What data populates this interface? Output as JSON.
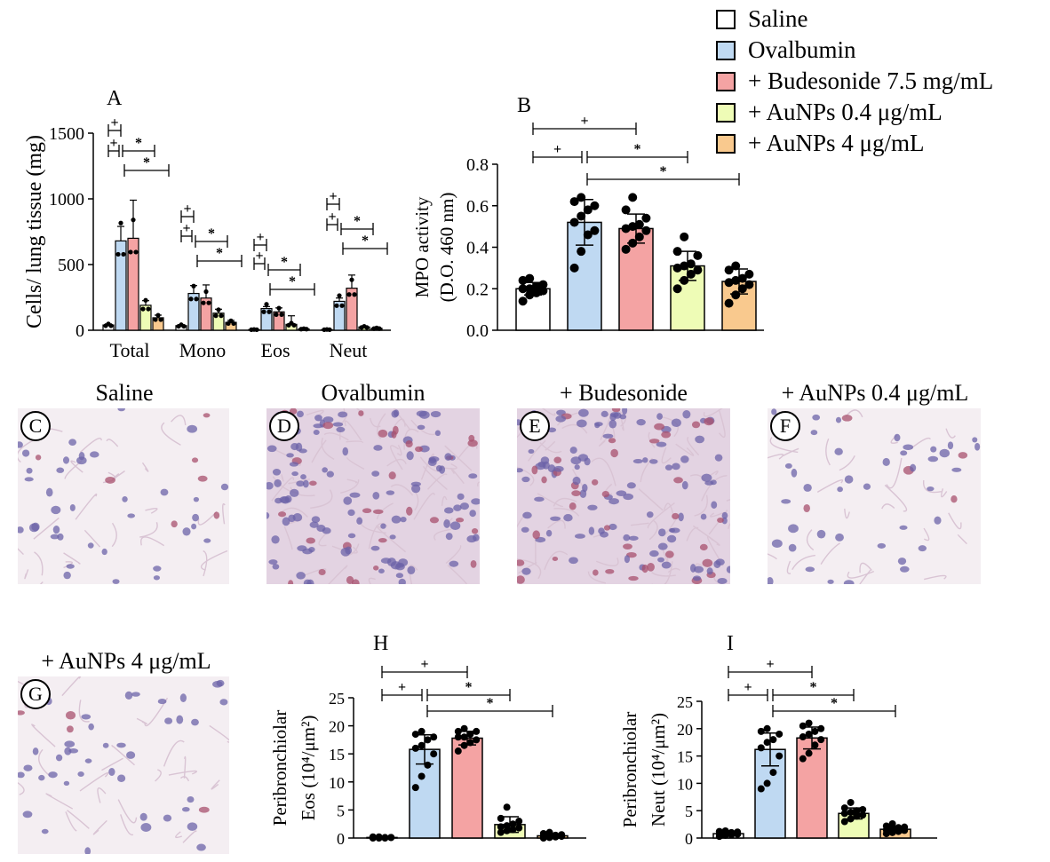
{
  "legend": {
    "items": [
      {
        "label": "Saline",
        "color": "#ffffff"
      },
      {
        "label": "Ovalbumin",
        "color": "#bfd9f2"
      },
      {
        "label": "+ Budesonide 7.5 mg/mL",
        "color": "#f4a3a3"
      },
      {
        "label": "+ AuNPs 0.4 μg/mL",
        "color": "#eefcb6"
      },
      {
        "label": "+ AuNPs 4 μg/mL",
        "color": "#f9c98e"
      }
    ]
  },
  "chart_data": [
    {
      "panel": "A",
      "type": "bar",
      "ylabel": "Cells/ lung tissue (mg)",
      "ylim": [
        0,
        1500
      ],
      "yticks": [
        "0",
        "500",
        "1000",
        "1500"
      ],
      "categories": [
        "Total",
        "Mono",
        "Eos",
        "Neut"
      ],
      "series": [
        {
          "name": "Saline",
          "values": [
            40,
            35,
            5,
            5
          ],
          "errors": [
            8,
            6,
            2,
            2
          ]
        },
        {
          "name": "Ovalbumin",
          "values": [
            680,
            280,
            165,
            220
          ],
          "errors": [
            110,
            60,
            15,
            25
          ]
        },
        {
          "name": "+ Budesonide 7.5 mg/mL",
          "values": [
            700,
            245,
            140,
            320
          ],
          "errors": [
            290,
            100,
            30,
            100
          ]
        },
        {
          "name": "+ AuNPs 0.4 μg/mL",
          "values": [
            190,
            130,
            45,
            25
          ],
          "errors": [
            35,
            30,
            65,
            8
          ]
        },
        {
          "name": "+ AuNPs 4 μg/mL",
          "values": [
            95,
            60,
            10,
            15
          ],
          "errors": [
            20,
            15,
            5,
            5
          ]
        }
      ],
      "significance": [
        "+",
        "+",
        "*",
        "*"
      ]
    },
    {
      "panel": "B",
      "type": "bar",
      "ylabel_line1": "MPO activity",
      "ylabel_line2": "(D.O. 460 nm)",
      "ylim": [
        0,
        0.8
      ],
      "yticks": [
        "0.0",
        "0.2",
        "0.4",
        "0.6",
        "0.8"
      ],
      "categories": [
        "Saline",
        "Ovalbumin",
        "+ Budesonide 7.5 mg/mL",
        "+ AuNPs 0.4 μg/mL",
        "+ AuNPs 4 μg/mL"
      ],
      "values": [
        0.2,
        0.52,
        0.49,
        0.31,
        0.235
      ],
      "errors": [
        0.03,
        0.11,
        0.07,
        0.07,
        0.06
      ],
      "points": [
        [
          0.14,
          0.17,
          0.18,
          0.19,
          0.2,
          0.2,
          0.21,
          0.22,
          0.24,
          0.25
        ],
        [
          0.3,
          0.38,
          0.46,
          0.48,
          0.52,
          0.55,
          0.58,
          0.6,
          0.62,
          0.64
        ],
        [
          0.39,
          0.42,
          0.45,
          0.48,
          0.49,
          0.5,
          0.51,
          0.54,
          0.58,
          0.64
        ],
        [
          0.2,
          0.24,
          0.27,
          0.29,
          0.3,
          0.31,
          0.32,
          0.36,
          0.38,
          0.45
        ],
        [
          0.13,
          0.17,
          0.2,
          0.22,
          0.23,
          0.24,
          0.25,
          0.27,
          0.29,
          0.31
        ]
      ],
      "significance": [
        "+",
        "+",
        "*",
        "*"
      ]
    },
    {
      "panel": "H",
      "type": "bar",
      "ylabel_line1": "Peribronchiolar",
      "ylabel_line2": "Eos (10⁴/μm²)",
      "ylim": [
        0,
        25
      ],
      "yticks": [
        "0",
        "5",
        "10",
        "15",
        "20",
        "25"
      ],
      "categories": [
        "Saline",
        "Ovalbumin",
        "+ Budesonide 7.5 mg/mL",
        "+ AuNPs 0.4 μg/mL",
        "+ AuNPs 4 μg/mL"
      ],
      "values": [
        0.1,
        15.8,
        17.8,
        2.4,
        0.4
      ],
      "errors": [
        0.1,
        2.6,
        1.2,
        1.4,
        0.3
      ],
      "points": [
        [
          0.0,
          0.0,
          0.0,
          0.1,
          0.1,
          0.1,
          0.1,
          0.1,
          0.2,
          0.2
        ],
        [
          9.0,
          11.0,
          13.0,
          15.0,
          16.0,
          16.5,
          17.5,
          18.0,
          18.5,
          19.0
        ],
        [
          15.5,
          16.5,
          17.0,
          17.5,
          18.0,
          18.0,
          18.5,
          19.0,
          19.0,
          19.5
        ],
        [
          1.0,
          1.3,
          1.5,
          1.8,
          2.0,
          2.2,
          2.5,
          3.0,
          3.5,
          5.5
        ],
        [
          0.0,
          0.1,
          0.2,
          0.3,
          0.3,
          0.4,
          0.5,
          0.6,
          0.8,
          1.0
        ]
      ],
      "significance": [
        "+",
        "+",
        "*",
        "*"
      ]
    },
    {
      "panel": "I",
      "type": "bar",
      "ylabel_line1": "Peribronchiolar",
      "ylabel_line2": "Neut (10⁴/μm²)",
      "ylim": [
        0,
        25
      ],
      "yticks": [
        "0",
        "5",
        "10",
        "15",
        "20",
        "25"
      ],
      "categories": [
        "Saline",
        "Ovalbumin",
        "+ Budesonide 7.5 mg/mL",
        "+ AuNPs 0.4 μg/mL",
        "+ AuNPs 4 μg/mL"
      ],
      "values": [
        0.8,
        16.2,
        18.3,
        4.5,
        1.6
      ],
      "errors": [
        0.3,
        3.0,
        2.0,
        1.0,
        0.6
      ],
      "points": [
        [
          0.3,
          0.5,
          0.6,
          0.7,
          0.8,
          0.9,
          1.0,
          1.1,
          1.2,
          1.3
        ],
        [
          9.0,
          10.0,
          12.0,
          15.0,
          16.5,
          17.5,
          18.0,
          19.0,
          19.5,
          20.0
        ],
        [
          14.5,
          15.5,
          17.0,
          18.0,
          18.5,
          19.0,
          19.5,
          20.0,
          20.5,
          21.0
        ],
        [
          3.0,
          3.5,
          4.0,
          4.2,
          4.5,
          4.7,
          5.0,
          5.2,
          5.5,
          6.5
        ],
        [
          0.8,
          1.0,
          1.2,
          1.4,
          1.5,
          1.7,
          1.9,
          2.0,
          2.2,
          2.6
        ]
      ],
      "significance": [
        "+",
        "+",
        "*",
        "*"
      ]
    }
  ],
  "panel_labels": {
    "A": "A",
    "B": "B",
    "H": "H",
    "I": "I"
  },
  "micrographs": [
    {
      "letter": "C",
      "title": "Saline",
      "density": "low"
    },
    {
      "letter": "D",
      "title": "Ovalbumin",
      "density": "high"
    },
    {
      "letter": "E",
      "title": "+ Budesonide",
      "density": "high"
    },
    {
      "letter": "F",
      "title": "+ AuNPs 0.4 μg/mL",
      "density": "low"
    },
    {
      "letter": "G",
      "title": "+ AuNPs 4 μg/mL",
      "density": "low"
    }
  ],
  "tissue_colors": {
    "background": "#f4eef2",
    "nucleus_blue": "#6c63a8",
    "nucleus_red": "#a8506e",
    "stroma": "#d9c4d4"
  }
}
